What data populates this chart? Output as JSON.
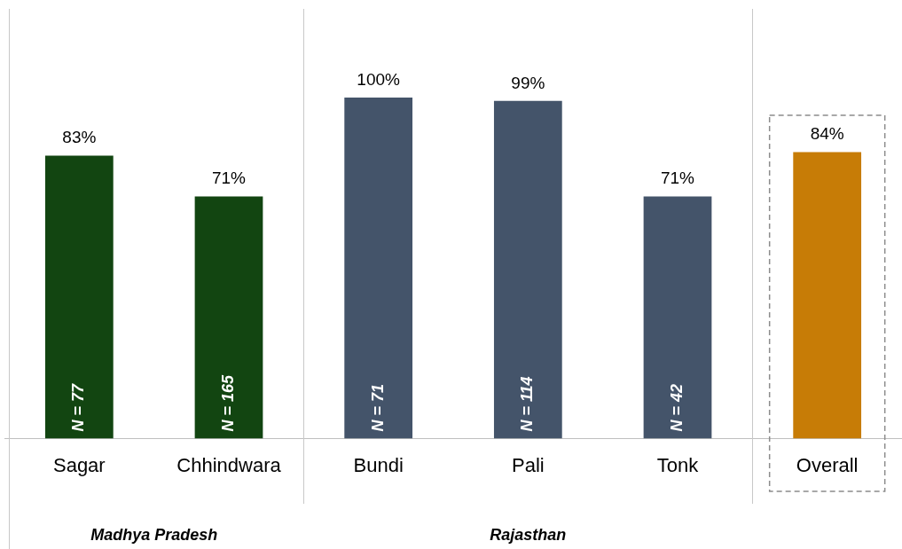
{
  "chart_data": {
    "type": "bar",
    "categories": [
      "Sagar",
      "Chhindwara",
      "Bundi",
      "Pali",
      "Tonk",
      "Overall"
    ],
    "values": [
      83,
      71,
      100,
      99,
      71,
      84
    ],
    "colors": [
      "#124511",
      "#124511",
      "#44546a",
      "#44546a",
      "#44546a",
      "#c77c06"
    ],
    "value_labels": [
      "83%",
      "71%",
      "100%",
      "99%",
      "71%",
      "84%"
    ],
    "ylim": [
      0,
      126
    ],
    "tick_labels": "x",
    "grid": false,
    "legend": false,
    "annotations": [
      {
        "text": "N = 77",
        "x": "Sagar",
        "y": 0
      },
      {
        "text": "N = 165",
        "x": "Chhindwara",
        "y": 0
      },
      {
        "text": "N = 71",
        "x": "Bundi",
        "y": 0
      },
      {
        "text": "N = 114",
        "x": "Pali",
        "y": 0
      },
      {
        "text": "N = 42",
        "x": "Tonk",
        "y": 0
      },
      "Madhya Pradesh",
      "Rajasthan"
    ]
  }
}
